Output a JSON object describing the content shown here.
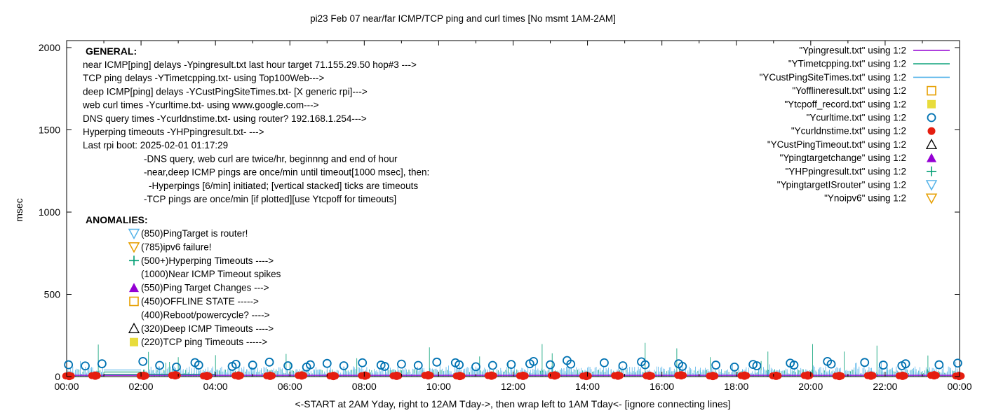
{
  "title": "pi23 Feb 07  near/far ICMP/TCP ping and curl times [No msmt 1AM-2AM]",
  "axes": {
    "y_label": "msec",
    "x_label": "<-START at 2AM Yday, right to 12AM Tday->, then wrap left to 1AM Tday<- [ignore connecting lines]",
    "y_ticks": [
      0,
      500,
      1000,
      1500,
      2000
    ],
    "x_tick_labels": [
      "00:00",
      "02:00",
      "04:00",
      "06:00",
      "08:00",
      "10:00",
      "12:00",
      "14:00",
      "16:00",
      "18:00",
      "20:00",
      "22:00",
      "00:00"
    ]
  },
  "info_block": {
    "heading": "GENERAL:",
    "lines": [
      {
        "indent": 0,
        "text": "near ICMP[ping] delays -Ypingresult.txt last hour target 71.155.29.50 hop#3 --->"
      },
      {
        "indent": 0,
        "text": "TCP ping delays -YTimetcpping.txt- using Top100Web--->"
      },
      {
        "indent": 0,
        "text": "deep ICMP[ping] delays -YCustPingSiteTimes.txt- [X generic rpi]--->"
      },
      {
        "indent": 0,
        "text": "web curl times -Ycurltime.txt- using www.google.com--->"
      },
      {
        "indent": 0,
        "text": "DNS query times -Ycurldnstime.txt- using router? 192.168.1.254--->"
      },
      {
        "indent": 0,
        "text": "Hyperping timeouts -YHPpingresult.txt- --->"
      },
      {
        "indent": 0,
        "text": "Last rpi boot: 2025-02-01 01:17:29"
      },
      {
        "indent": 1,
        "text": "-DNS query, web curl are twice/hr, beginnng and end of hour"
      },
      {
        "indent": 1,
        "text": "-near,deep ICMP pings are once/min until timeout[1000 msec], then:"
      },
      {
        "indent": 2,
        "text": "-Hyperpings [6/min] initiated; [vertical stacked] ticks are timeouts"
      },
      {
        "indent": 1,
        "text": "-TCP pings are once/min [if plotted][use Ytcpoff for timeouts]"
      }
    ]
  },
  "anomalies_block": {
    "heading": "ANOMALIES:",
    "items": [
      {
        "marker": "triangle-down-open",
        "color": "#56b4e9",
        "text": "(850)PingTarget is router!"
      },
      {
        "marker": "triangle-down-open",
        "color": "#e69f00",
        "text": "(785)ipv6 failure!"
      },
      {
        "marker": "plus",
        "color": "#009e73",
        "text": "(500+)Hyperping Timeouts ---->"
      },
      {
        "marker": "none",
        "color": "",
        "text": "(1000)Near ICMP Timeout spikes"
      },
      {
        "marker": "triangle-up-filled",
        "color": "#9400d3",
        "text": "(550)Ping Target Changes --->"
      },
      {
        "marker": "square-open",
        "color": "#e69f00",
        "text": "(450)OFFLINE STATE ----->"
      },
      {
        "marker": "none",
        "color": "",
        "text": "(400)Reboot/powercycle? ---->"
      },
      {
        "marker": "triangle-up-open",
        "color": "#000000",
        "text": "(320)Deep ICMP Timeouts ---->"
      },
      {
        "marker": "square-filled",
        "color": "#e8dc3c",
        "text": "(220)TCP ping Timeouts ----->"
      }
    ]
  },
  "legend": {
    "position": "top-right-inside",
    "entries": [
      {
        "label": "\"Ypingresult.txt\" using 1:2",
        "marker": "line",
        "color": "#9400d3"
      },
      {
        "label": "\"YTimetcpping.txt\" using 1:2",
        "marker": "line",
        "color": "#009e73"
      },
      {
        "label": "\"YCustPingSiteTimes.txt\" using 1:2",
        "marker": "line",
        "color": "#56b4e9"
      },
      {
        "label": "\"Yofflineresult.txt\" using 1:2",
        "marker": "square-open",
        "color": "#e69f00"
      },
      {
        "label": "\"Ytcpoff_record.txt\" using 1:2",
        "marker": "square-filled",
        "color": "#e8dc3c"
      },
      {
        "label": "\"Ycurltime.txt\" using 1:2",
        "marker": "circle-open",
        "color": "#0072b2"
      },
      {
        "label": "\"Ycurldnstime.txt\" using 1:2",
        "marker": "circle-filled",
        "color": "#e51e10"
      },
      {
        "label": "\"YCustPingTimeout.txt\" using 1:2",
        "marker": "triangle-up-open",
        "color": "#000000"
      },
      {
        "label": "\"Ypingtargetchange\" using 1:2",
        "marker": "triangle-up-filled",
        "color": "#9400d3"
      },
      {
        "label": "\"YHPpingresult.txt\" using 1:2",
        "marker": "plus",
        "color": "#009e73"
      },
      {
        "label": "\"YpingtargetISrouter\" using 1:2",
        "marker": "triangle-down-open",
        "color": "#56b4e9"
      },
      {
        "label": "\"Ynoipv6\" using 1:2",
        "marker": "triangle-down-open",
        "color": "#e69f00"
      }
    ]
  },
  "chart_data": {
    "type": "line",
    "x_unit": "hour-of-day",
    "x_range_hours": [
      0,
      24
    ],
    "ylim": [
      0,
      2000
    ],
    "ylabel": "msec",
    "grid": false,
    "no_measurement_gap_hours": [
      1.03,
      1.97
    ],
    "noise_seed": 11,
    "series": [
      {
        "name": "Ypingresult.txt",
        "style": "line",
        "color": "#9400d3",
        "baseline_msec": 8
      },
      {
        "name": "YTimetcpping.txt",
        "style": "grass-line",
        "color": "#009e73",
        "noise_min_msec": 8,
        "noise_max_msec": 45,
        "rare_spike_chance": 0.012,
        "rare_spike_max_msec": 100,
        "spikes": [
          [
            0.85,
            195
          ],
          [
            2.2,
            150
          ],
          [
            3.0,
            118
          ],
          [
            4.0,
            130
          ],
          [
            5.9,
            138
          ],
          [
            7.8,
            112
          ],
          [
            9.75,
            178
          ],
          [
            11.1,
            122
          ],
          [
            12.78,
            198
          ],
          [
            13.05,
            142
          ],
          [
            15.55,
            205
          ],
          [
            16.4,
            172
          ],
          [
            17.3,
            118
          ],
          [
            18.85,
            152
          ],
          [
            20.05,
            198
          ],
          [
            20.9,
            152
          ],
          [
            21.78,
            188
          ],
          [
            23.15,
            128
          ]
        ]
      },
      {
        "name": "YCustPingSiteTimes.txt",
        "style": "grass-line",
        "color": "#56b4e9",
        "noise_min_msec": 14,
        "noise_max_msec": 62,
        "rare_spike_chance": 0.02,
        "rare_spike_max_msec": 95,
        "spikes": []
      },
      {
        "name": "Yofflineresult.txt",
        "style": "square-open",
        "color": "#e69f00",
        "points": []
      },
      {
        "name": "Ytcpoff_record.txt",
        "style": "square-filled",
        "color": "#e8dc3c",
        "points": []
      },
      {
        "name": "Ycurltime.txt",
        "style": "circle-open",
        "color": "#0072b2",
        "points": [
          [
            0.05,
            72
          ],
          [
            0.5,
            65
          ],
          [
            0.95,
            78
          ],
          [
            2.05,
            92
          ],
          [
            2.5,
            68
          ],
          [
            2.95,
            58
          ],
          [
            3.45,
            85
          ],
          [
            3.55,
            70
          ],
          [
            4.45,
            62
          ],
          [
            4.55,
            75
          ],
          [
            5.0,
            70
          ],
          [
            5.45,
            88
          ],
          [
            5.95,
            66
          ],
          [
            6.45,
            58
          ],
          [
            6.55,
            72
          ],
          [
            7.0,
            80
          ],
          [
            7.45,
            66
          ],
          [
            7.95,
            84
          ],
          [
            8.45,
            70
          ],
          [
            8.55,
            62
          ],
          [
            9.0,
            76
          ],
          [
            9.45,
            68
          ],
          [
            9.95,
            88
          ],
          [
            10.45,
            84
          ],
          [
            10.55,
            72
          ],
          [
            11.0,
            60
          ],
          [
            11.45,
            68
          ],
          [
            11.95,
            74
          ],
          [
            12.45,
            78
          ],
          [
            12.55,
            92
          ],
          [
            13.0,
            72
          ],
          [
            13.45,
            98
          ],
          [
            13.55,
            76
          ],
          [
            14.45,
            84
          ],
          [
            14.95,
            66
          ],
          [
            15.45,
            90
          ],
          [
            15.55,
            72
          ],
          [
            16.45,
            78
          ],
          [
            16.55,
            62
          ],
          [
            17.45,
            70
          ],
          [
            17.95,
            58
          ],
          [
            18.45,
            74
          ],
          [
            18.55,
            66
          ],
          [
            19.45,
            82
          ],
          [
            19.55,
            70
          ],
          [
            20.45,
            92
          ],
          [
            20.55,
            76
          ],
          [
            21.45,
            86
          ],
          [
            21.95,
            70
          ],
          [
            22.45,
            66
          ],
          [
            22.55,
            78
          ],
          [
            23.45,
            72
          ],
          [
            23.95,
            82
          ]
        ]
      },
      {
        "name": "Ycurldnstime.txt",
        "style": "blob-filled",
        "color": "#e51e10",
        "points": [
          [
            0.05,
            8
          ],
          [
            0.75,
            10
          ],
          [
            2.05,
            9
          ],
          [
            2.9,
            12
          ],
          [
            3.75,
            8
          ],
          [
            4.6,
            10
          ],
          [
            5.45,
            9
          ],
          [
            6.3,
            11
          ],
          [
            7.15,
            8
          ],
          [
            8.0,
            10
          ],
          [
            8.85,
            9
          ],
          [
            9.7,
            12
          ],
          [
            10.55,
            8
          ],
          [
            11.4,
            10
          ],
          [
            12.25,
            9
          ],
          [
            13.1,
            11
          ],
          [
            13.95,
            8
          ],
          [
            14.8,
            10
          ],
          [
            15.65,
            9
          ],
          [
            16.5,
            12
          ],
          [
            17.35,
            8
          ],
          [
            18.2,
            10
          ],
          [
            19.05,
            9
          ],
          [
            19.9,
            11
          ],
          [
            20.75,
            8
          ],
          [
            21.6,
            10
          ],
          [
            22.45,
            9
          ],
          [
            23.3,
            12
          ],
          [
            23.97,
            8
          ]
        ]
      },
      {
        "name": "YCustPingTimeout.txt",
        "style": "triangle-up-open",
        "color": "#000000",
        "points": []
      },
      {
        "name": "Ypingtargetchange",
        "style": "triangle-up-filled",
        "color": "#9400d3",
        "points": []
      },
      {
        "name": "YHPpingresult.txt",
        "style": "plus",
        "color": "#009e73",
        "points": []
      },
      {
        "name": "YpingtargetISrouter",
        "style": "triangle-down-open",
        "color": "#56b4e9",
        "points": []
      },
      {
        "name": "Ynoipv6",
        "style": "triangle-down-open",
        "color": "#e69f00",
        "points": []
      }
    ],
    "connectors": [
      {
        "color": "#56b4e9",
        "from_hour": 1.0,
        "to_hour": 2.0,
        "msec": 40
      },
      {
        "color": "#009e73",
        "from_hour": 1.0,
        "to_hour": 2.0,
        "msec": 28
      },
      {
        "color": "#009e73",
        "from_hour": 1.0,
        "to_hour": 4.0,
        "msec": 14
      },
      {
        "color": "#9400d3",
        "from_hour": 1.0,
        "to_hour": 2.0,
        "msec": 8
      }
    ]
  }
}
